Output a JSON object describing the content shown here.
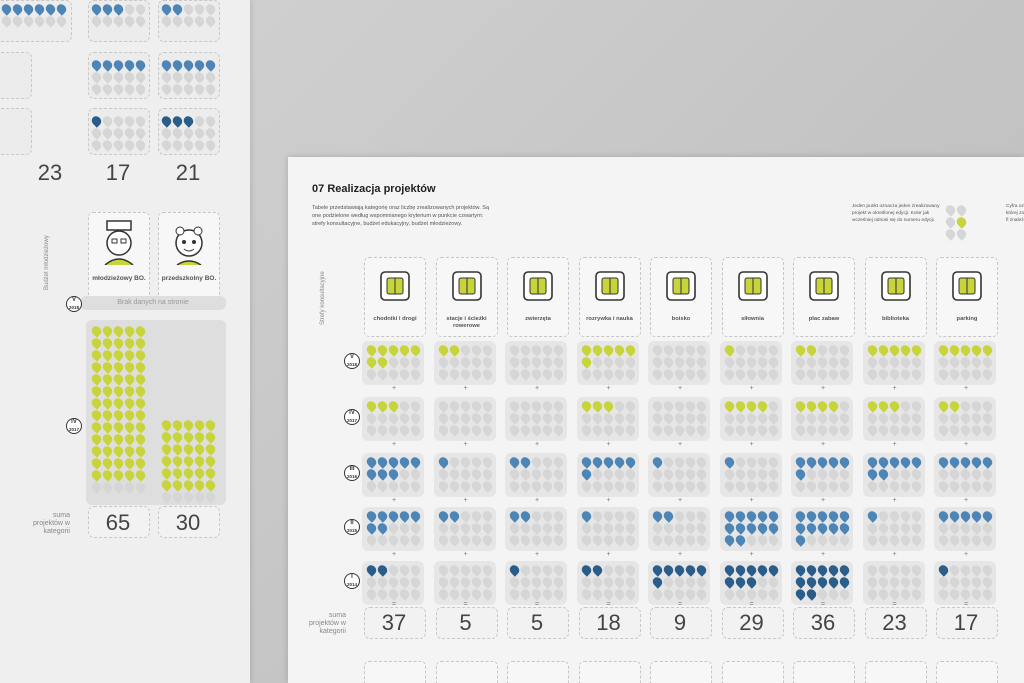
{
  "left_sheet": {
    "vertical_label": "Budżet młodzieżowy",
    "totals_top": [
      "23",
      "17",
      "21"
    ],
    "categories": [
      {
        "label": "młodzieżowy BO."
      },
      {
        "label": "przedszkolny BO."
      }
    ],
    "no_data_note": "Brak danych na stronie",
    "years": [
      {
        "roman": "V",
        "year": "2018"
      },
      {
        "roman": "IV",
        "year": "2017"
      }
    ],
    "sum_label": "suma projektów w kategorii",
    "totals_bottom": [
      "65",
      "30"
    ]
  },
  "right_sheet": {
    "section_number": "07",
    "title": "Realizacja projektów",
    "intro": "Tabele przedstawiają kategorię oraz liczbę zrealizowanych projektów. Są one podzielone według wspomnianego kryterium w punkcie czwartym: strefy konsultacyjne, budżet edukacyjny, budżet młodzieżowy.",
    "legend_a": "Jeden punkt oznacza jeden zrealizowany projekt w określonej edycji. Kolor jak wcześniej odnosi się do numeru edycji.",
    "legend_b": "Cyfra oz w której zowany fl znaleźć",
    "vertical_label": "Strefy konsultacyjne",
    "categories": [
      {
        "label": "chodniki i drogi",
        "icon": "road-map-icon",
        "total": "37"
      },
      {
        "label": "stacje i ścieżki rowerowe",
        "icon": "bicycle-station-icon",
        "total": "5"
      },
      {
        "label": "zwierzęta",
        "icon": "dog-hydrant-icon",
        "total": "5"
      },
      {
        "label": "rozrywka i nauka",
        "icon": "gameboy-flask-icon",
        "total": "18"
      },
      {
        "label": "boisko",
        "icon": "football-pitch-icon",
        "total": "9"
      },
      {
        "label": "siłownia",
        "icon": "gym-equipment-icon",
        "total": "29"
      },
      {
        "label": "plac zabaw",
        "icon": "playground-icon",
        "total": "36"
      },
      {
        "label": "biblioteka",
        "icon": "library-book-icon",
        "total": "23"
      },
      {
        "label": "parking",
        "icon": "parking-car-icon",
        "total": "17"
      }
    ],
    "years": [
      {
        "roman": "V",
        "year": "2018"
      },
      {
        "roman": "IV",
        "year": "2017"
      },
      {
        "roman": "III",
        "year": "2016"
      },
      {
        "roman": "II",
        "year": "2015"
      },
      {
        "roman": "I",
        "year": "2014"
      }
    ],
    "sum_label": "suma projektów w kategorii",
    "colors": {
      "edition_v": "#c8d43b",
      "edition_iv": "#c8d43b",
      "edition_iii": "#4d86b6",
      "edition_ii": "#4d86b6",
      "edition_i": "#2a5d8a",
      "empty": "#d6d6d6"
    }
  }
}
